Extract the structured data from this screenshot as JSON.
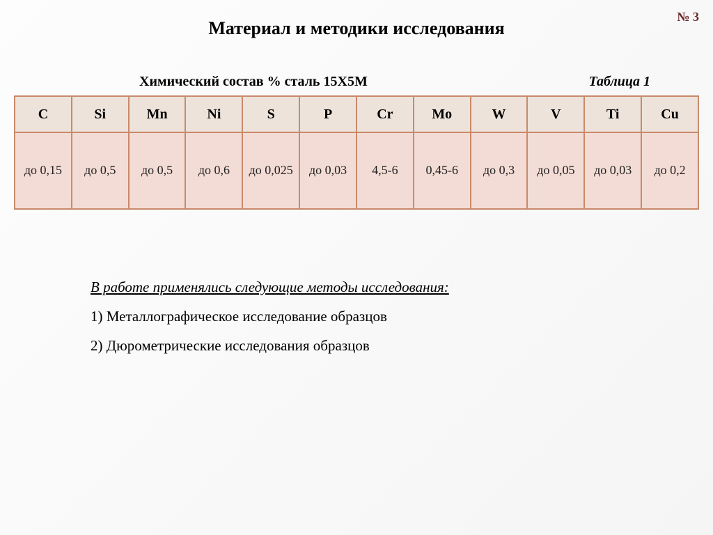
{
  "slide_number": "№ 3",
  "title": "Материал и методики исследования",
  "subtitle": "Химический состав % сталь 15Х5М",
  "table_label": "Таблица 1",
  "table": {
    "columns": [
      "C",
      "Si",
      "Mn",
      "Ni",
      "S",
      "P",
      "Cr",
      "Mo",
      "W",
      "V",
      "Ti",
      "Cu"
    ],
    "values": [
      "до 0,15",
      "до 0,5",
      "до 0,5",
      "до 0,6",
      "до 0,025",
      "до 0,03",
      "4,5-6",
      "0,45-6",
      "до 0,3",
      "до 0,05",
      "до 0,03",
      "до 0,2"
    ],
    "header_bg": "#ede3da",
    "cell_bg": "#f3dcd5",
    "border_color": "#c98a6a",
    "header_fontsize": 20,
    "cell_fontsize": 18
  },
  "methods": {
    "intro": "В работе применялись следующие методы исследования:",
    "items": [
      "1) Металлографическое исследование образцов",
      "2) Дюрометрические исследования образцов"
    ]
  },
  "colors": {
    "background_light": "#fdfdfd",
    "background_dark": "#f5f5f5",
    "slide_number": "#6b2a2a",
    "text": "#000000"
  },
  "fonts": {
    "family": "Times New Roman",
    "title_size": 26,
    "subtitle_size": 20,
    "body_size": 21
  }
}
